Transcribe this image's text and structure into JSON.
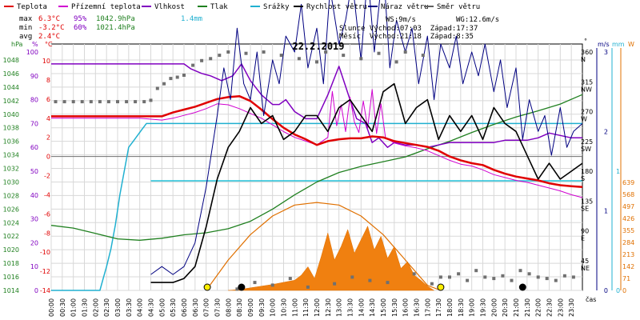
{
  "chart_data": {
    "type": "line",
    "title": "22.2.2019",
    "legend": [
      {
        "label": "Teplota",
        "color": "#e00000",
        "key": "temp"
      },
      {
        "label": "Přízemní teplota",
        "color": "#d000d0",
        "key": "ground"
      },
      {
        "label": "Vlhkost",
        "color": "#8000c0",
        "key": "hum"
      },
      {
        "label": "Tlak",
        "color": "#208020",
        "key": "press"
      },
      {
        "label": "Srážky",
        "color": "#20b0d0",
        "key": "rain"
      },
      {
        "label": "Rychlost větru",
        "color": "#000000",
        "key": "wind"
      },
      {
        "label": "Náraz větru",
        "color": "#000080",
        "key": "gust"
      },
      {
        "label": "Směr větru",
        "color": "#606060",
        "key": "dir"
      }
    ],
    "stats": {
      "row_labels": [
        "max",
        "min",
        "avg"
      ],
      "temp": [
        "6.3°C",
        "-3.2°C",
        "2.4°C"
      ],
      "hum": [
        "95%",
        "60%",
        ""
      ],
      "press": [
        "1042.9hPa",
        "1021.4hPa",
        ""
      ],
      "rain": [
        "1.4mm",
        "",
        ""
      ]
    },
    "info": {
      "ws": "WS:9m/s",
      "wg": "WG:12.6m/s",
      "sun": "Slunce Východ:07:03  Západ:17:37",
      "moon": "Měsíc  Východ:21:18  Západ:8:35"
    },
    "axes": {
      "hpa_label": "hPa",
      "pct_label": "%",
      "temp_label": "°C",
      "dir_label": "°",
      "ms_label": "m/s",
      "mm_label": "mm",
      "w_label": "W",
      "x_label": "čas",
      "hpa_ticks": [
        "1048",
        "1046",
        "1044",
        "1042",
        "1040",
        "1038",
        "1036",
        "1034",
        "1032",
        "1030",
        "1028",
        "1026",
        "1024",
        "1022",
        "1020",
        "1018",
        "1016",
        "1014"
      ],
      "pct_ticks": [
        "100",
        "90",
        "80",
        "70",
        "60",
        "50",
        "40",
        "30",
        "20",
        "10",
        "0"
      ],
      "temp_ticks": [
        "10",
        "8",
        "6",
        "4",
        "2",
        "0",
        "-2",
        "-4",
        "-6",
        "-8",
        "-10",
        "-12",
        "-14"
      ],
      "dir_ticks": [
        {
          "deg": "360",
          "name": "N",
          "v": 360
        },
        {
          "deg": "315",
          "name": "NW",
          "v": 315
        },
        {
          "deg": "270",
          "name": "W",
          "v": 270
        },
        {
          "deg": "225",
          "name": "SW",
          "v": 225
        },
        {
          "deg": "180",
          "name": "S",
          "v": 180
        },
        {
          "deg": "135",
          "name": "SE",
          "v": 135
        },
        {
          "deg": "90",
          "name": "E",
          "v": 90
        },
        {
          "deg": "45",
          "name": "NE",
          "v": 45
        }
      ],
      "ms_ticks": [
        {
          "label": "3",
          "v": 3
        },
        {
          "label": "2",
          "v": 2
        },
        {
          "label": "1",
          "v": 1
        },
        {
          "label": "0",
          "v": 0
        }
      ],
      "mm_ticks": [
        {
          "label": "1",
          "v": 1
        },
        {
          "label": "0",
          "v": 0
        }
      ],
      "w_ticks": [
        "639",
        "568",
        "497",
        "426",
        "355",
        "284",
        "213",
        "142",
        "71",
        "0"
      ],
      "x_ticks": [
        "00:00",
        "00:30",
        "01:00",
        "01:30",
        "02:00",
        "02:30",
        "03:00",
        "03:30",
        "04:00",
        "04:30",
        "05:00",
        "05:30",
        "06:00",
        "06:30",
        "07:00",
        "07:30",
        "08:00",
        "08:30",
        "09:00",
        "09:30",
        "10:00",
        "10:30",
        "11:00",
        "11:30",
        "12:00",
        "12:30",
        "13:00",
        "13:30",
        "14:00",
        "14:30",
        "15:00",
        "15:30",
        "16:00",
        "16:30",
        "17:00",
        "17:30",
        "18:00",
        "18:30",
        "19:00",
        "19:30",
        "20:00",
        "20:30",
        "21:00",
        "21:30",
        "22:00",
        "22:30",
        "23:00",
        "23:30"
      ]
    },
    "series": {
      "temp": {
        "x": [
          0,
          1,
          2,
          3,
          4,
          5,
          5.5,
          6,
          6.5,
          7,
          7.5,
          8,
          8.5,
          9,
          9.5,
          10,
          10.5,
          11,
          11.5,
          12,
          12.5,
          13,
          13.5,
          14,
          14.5,
          15,
          15.5,
          16,
          16.5,
          17,
          17.5,
          18,
          18.5,
          19,
          19.5,
          20,
          20.5,
          21,
          21.5,
          22,
          22.5,
          23,
          23.5,
          24
        ],
        "y": [
          4.2,
          4.2,
          4.2,
          4.2,
          4.2,
          4.2,
          4.6,
          4.9,
          5.2,
          5.6,
          6.0,
          6.2,
          6.3,
          5.8,
          4.9,
          3.9,
          3.0,
          2.3,
          1.8,
          1.2,
          1.6,
          1.8,
          1.9,
          1.9,
          2.1,
          2.0,
          1.6,
          1.4,
          1.2,
          1.0,
          0.6,
          0.0,
          -0.4,
          -0.7,
          -0.9,
          -1.4,
          -1.8,
          -2.1,
          -2.3,
          -2.5,
          -2.8,
          -3.0,
          -3.1,
          -3.2
        ]
      },
      "ground": {
        "x": [
          0,
          1,
          2,
          3,
          4,
          5,
          5.5,
          6,
          6.5,
          7,
          7.5,
          8,
          8.5,
          9,
          9.5,
          10,
          10.5,
          11,
          11.5,
          12,
          12.5,
          12.7,
          12.9,
          13.1,
          13.3,
          13.5,
          13.7,
          13.9,
          14.1,
          14.3,
          14.5,
          14.7,
          14.9,
          15.1,
          15.5,
          16,
          16.5,
          17,
          17.5,
          18,
          18.5,
          19,
          19.5,
          20,
          20.5,
          21,
          21.5,
          22,
          22.5,
          23,
          23.5,
          24
        ],
        "y": [
          4.0,
          4.0,
          4.0,
          4.0,
          4.0,
          3.8,
          4.0,
          4.3,
          4.6,
          5.0,
          5.5,
          5.4,
          5.0,
          4.5,
          4.0,
          3.3,
          2.6,
          2.0,
          1.6,
          1.2,
          2.0,
          6.8,
          3.2,
          5.4,
          2.6,
          6.2,
          3.6,
          2.5,
          5.8,
          3.0,
          7.0,
          2.4,
          5.5,
          2.0,
          1.4,
          1.1,
          0.9,
          0.6,
          0.1,
          -0.4,
          -0.8,
          -1.0,
          -1.4,
          -1.9,
          -2.2,
          -2.5,
          -2.7,
          -3.0,
          -3.3,
          -3.6,
          -4.0,
          -4.3
        ]
      },
      "hum": {
        "x": [
          0,
          1,
          2,
          3,
          4,
          5,
          6,
          6.3,
          6.8,
          7.2,
          7.7,
          8.2,
          8.6,
          9,
          9.5,
          10,
          10.3,
          10.6,
          11,
          11.5,
          12,
          12.5,
          13,
          13.5,
          13.8,
          14.2,
          14.5,
          14.8,
          15.2,
          15.5,
          16,
          16.5,
          17,
          17.5,
          18,
          18.5,
          19,
          19.5,
          20,
          20.5,
          21,
          21.5,
          22,
          22.5,
          23,
          23.5,
          24
        ],
        "y": [
          95,
          95,
          95,
          95,
          95,
          95,
          95,
          93,
          91,
          90,
          88,
          90,
          95,
          88,
          82,
          78,
          78,
          80,
          75,
          72,
          72,
          82,
          94,
          80,
          72,
          70,
          62,
          64,
          60,
          62,
          61,
          61,
          60,
          61,
          62,
          62,
          62,
          62,
          62,
          63,
          63,
          63,
          64,
          66,
          65,
          64,
          64
        ]
      },
      "press": {
        "x": [
          0,
          1,
          2,
          3,
          4,
          5,
          6,
          7,
          8,
          9,
          10,
          11,
          12,
          13,
          14,
          15,
          16,
          17,
          18,
          19,
          20,
          21,
          22,
          23,
          24
        ],
        "y": [
          1023.6,
          1023.2,
          1022.4,
          1021.6,
          1021.4,
          1021.7,
          1022.2,
          1022.5,
          1023.1,
          1024.2,
          1026.0,
          1028.1,
          1030.0,
          1031.4,
          1032.3,
          1033.0,
          1033.7,
          1034.9,
          1036.0,
          1037.3,
          1038.5,
          1039.6,
          1040.5,
          1041.5,
          1042.9
        ]
      },
      "rain": {
        "x": [
          0,
          2.2,
          2.35,
          2.5,
          2.7,
          2.9,
          3.1,
          3.3,
          3.5,
          3.7,
          3.9,
          4.1,
          4.3,
          24
        ],
        "y": [
          0,
          0,
          0.1,
          0.2,
          0.35,
          0.55,
          0.8,
          1.0,
          1.2,
          1.25,
          1.3,
          1.35,
          1.4,
          1.4
        ]
      },
      "wind": {
        "x": [
          4.5,
          5,
          5.5,
          6,
          6.5,
          7,
          7.5,
          8,
          8.5,
          9,
          9.5,
          10,
          10.5,
          11,
          11.5,
          12,
          12.5,
          13,
          13.5,
          14,
          14.5,
          15,
          15.5,
          16,
          16.5,
          17,
          17.5,
          18,
          18.5,
          19,
          19.5,
          20,
          20.5,
          21,
          21.5,
          22,
          22.5,
          23,
          23.5,
          24
        ],
        "y": [
          0.1,
          0.1,
          0.1,
          0.15,
          0.3,
          0.8,
          1.4,
          1.8,
          2.0,
          2.3,
          2.1,
          2.2,
          1.9,
          2.0,
          2.2,
          2.2,
          2.0,
          2.3,
          2.4,
          2.2,
          2.0,
          2.5,
          2.6,
          2.1,
          2.3,
          2.4,
          1.9,
          2.2,
          2.0,
          2.2,
          1.9,
          2.3,
          2.1,
          2.0,
          1.7,
          1.4,
          1.6,
          1.4,
          1.5,
          1.6
        ]
      },
      "gust": {
        "x": [
          4.5,
          5,
          5.5,
          6,
          6.5,
          7,
          7.5,
          7.8,
          8.1,
          8.4,
          8.7,
          9,
          9.3,
          9.6,
          10,
          10.3,
          10.6,
          11,
          11.3,
          11.6,
          12,
          12.3,
          12.6,
          13,
          13.3,
          13.6,
          14,
          14.3,
          14.6,
          15,
          15.3,
          15.6,
          16,
          16.3,
          16.6,
          17,
          17.3,
          17.6,
          18,
          18.3,
          18.6,
          19,
          19.3,
          19.6,
          20,
          20.3,
          20.6,
          21,
          21.3,
          21.6,
          22,
          22.3,
          22.6,
          23,
          23.3,
          23.6,
          24
        ],
        "y": [
          0.2,
          0.3,
          0.2,
          0.3,
          0.6,
          1.3,
          2.2,
          2.8,
          2.4,
          3.3,
          2.6,
          2.4,
          3.0,
          2.2,
          2.9,
          2.6,
          3.2,
          3.0,
          3.6,
          2.8,
          3.3,
          2.6,
          3.8,
          3.1,
          3.4,
          3.9,
          2.9,
          4.0,
          3.0,
          4.1,
          2.8,
          3.4,
          3.0,
          3.3,
          2.6,
          3.2,
          2.4,
          3.1,
          2.8,
          3.2,
          2.6,
          3.0,
          2.7,
          3.1,
          2.5,
          2.9,
          2.3,
          2.8,
          1.9,
          2.4,
          2.0,
          2.2,
          1.7,
          2.3,
          1.8,
          2.0,
          2.1
        ]
      },
      "dir": {
        "x": [
          0.2,
          0.6,
          1.0,
          1.4,
          1.8,
          2.2,
          2.6,
          3.0,
          3.4,
          3.8,
          4.2,
          4.5,
          4.8,
          5.1,
          5.4,
          5.7,
          6.0,
          6.4,
          6.8,
          7.2,
          7.6,
          8.0,
          8.4,
          8.8,
          9.2,
          9.6,
          10.0,
          10.4,
          10.8,
          11.2,
          11.6,
          12.0,
          12.4,
          12.8,
          13.2,
          13.6,
          14.0,
          14.4,
          14.8,
          15.2,
          15.6,
          16.0,
          16.4,
          16.8,
          17.2,
          17.6,
          18.0,
          18.4,
          18.8,
          19.2,
          19.6,
          20.0,
          20.4,
          20.8,
          21.2,
          21.6,
          22.0,
          22.4,
          22.8,
          23.2,
          23.6
        ],
        "y": [
          285,
          285,
          285,
          285,
          285,
          285,
          285,
          285,
          285,
          285,
          285,
          287,
          305,
          312,
          320,
          322,
          325,
          340,
          347,
          350,
          355,
          360,
          2,
          358,
          12,
          360,
          8,
          355,
          18,
          350,
          5,
          345,
          360,
          10,
          355,
          20,
          350,
          15,
          358,
          12,
          345,
          360,
          25,
          355,
          10,
          20,
          20,
          25,
          15,
          30,
          20,
          18,
          22,
          15,
          30,
          25,
          20,
          18,
          15,
          22,
          20
        ]
      },
      "solar": {
        "x": [
          8.0,
          8.5,
          9,
          9.5,
          10,
          10.5,
          11,
          11.3,
          11.6,
          11.9,
          12.2,
          12.5,
          12.8,
          13.1,
          13.4,
          13.7,
          14.0,
          14.3,
          14.6,
          14.9,
          15.2,
          15.5,
          15.8,
          16.1,
          16.4,
          16.7,
          17.0,
          17.3
        ],
        "y": [
          0,
          5,
          15,
          25,
          35,
          48,
          60,
          90,
          140,
          70,
          200,
          340,
          180,
          260,
          360,
          220,
          300,
          380,
          240,
          320,
          190,
          260,
          130,
          170,
          90,
          60,
          25,
          0
        ]
      },
      "theory": {
        "x": [
          7.0,
          8,
          9,
          10,
          11,
          12,
          13,
          14,
          15,
          16,
          17,
          17.6
        ],
        "y": [
          0,
          180,
          330,
          440,
          505,
          520,
          505,
          440,
          330,
          180,
          30,
          0
        ]
      }
    }
  }
}
